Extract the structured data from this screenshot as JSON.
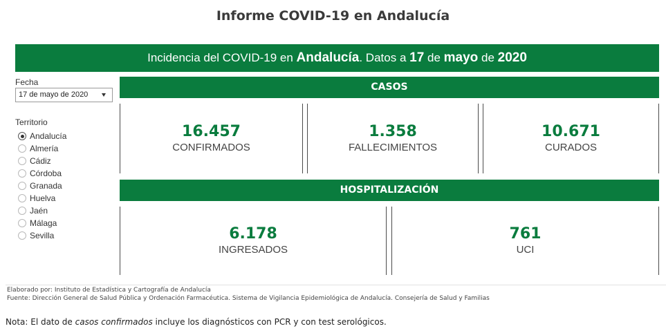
{
  "page": {
    "title": "Informe COVID-19 en Andalucía"
  },
  "banner": {
    "prefix": "Incidencia del COVID-19 en ",
    "region": "Andalucía",
    "middle": ". Datos a ",
    "day": "17",
    "de1": " de ",
    "month": "mayo",
    "de2": " de ",
    "year": "2020"
  },
  "filters": {
    "date_label": "Fecha",
    "date_value": "17 de mayo de 2020",
    "territory_label": "Territorio",
    "territories": [
      "Andalucía",
      "Almería",
      "Cádiz",
      "Córdoba",
      "Granada",
      "Huelva",
      "Jaén",
      "Málaga",
      "Sevilla"
    ],
    "selected_territory": "Andalucía"
  },
  "casos": {
    "title": "CASOS",
    "confirmados": {
      "value": "16.457",
      "label": "CONFIRMADOS"
    },
    "fallecimientos": {
      "value": "1.358",
      "label": "FALLECIMIENTOS"
    },
    "curados": {
      "value": "10.671",
      "label": "CURADOS"
    }
  },
  "hospitalizacion": {
    "title": "HOSPITALIZACIÓN",
    "ingresados": {
      "value": "6.178",
      "label": "INGRESADOS"
    },
    "uci": {
      "value": "761",
      "label": "UCI"
    }
  },
  "footer": {
    "elaborado": "Elaborado por: Instituto de Estadística y Cartografía de Andalucía",
    "fuente": "Fuente: Dirección General de Salud Pública y Ordenación Farmacéutica. Sistema de Vigilancia Epidemiológica de Andalucía. Consejería de Salud y Familias"
  },
  "note": {
    "prefix": "Nota: El dato de ",
    "emphasis": "casos confirmados",
    "suffix": " incluye los diagnósticos con PCR y con test serológicos."
  },
  "colors": {
    "brand_green": "#0a7c3e"
  }
}
